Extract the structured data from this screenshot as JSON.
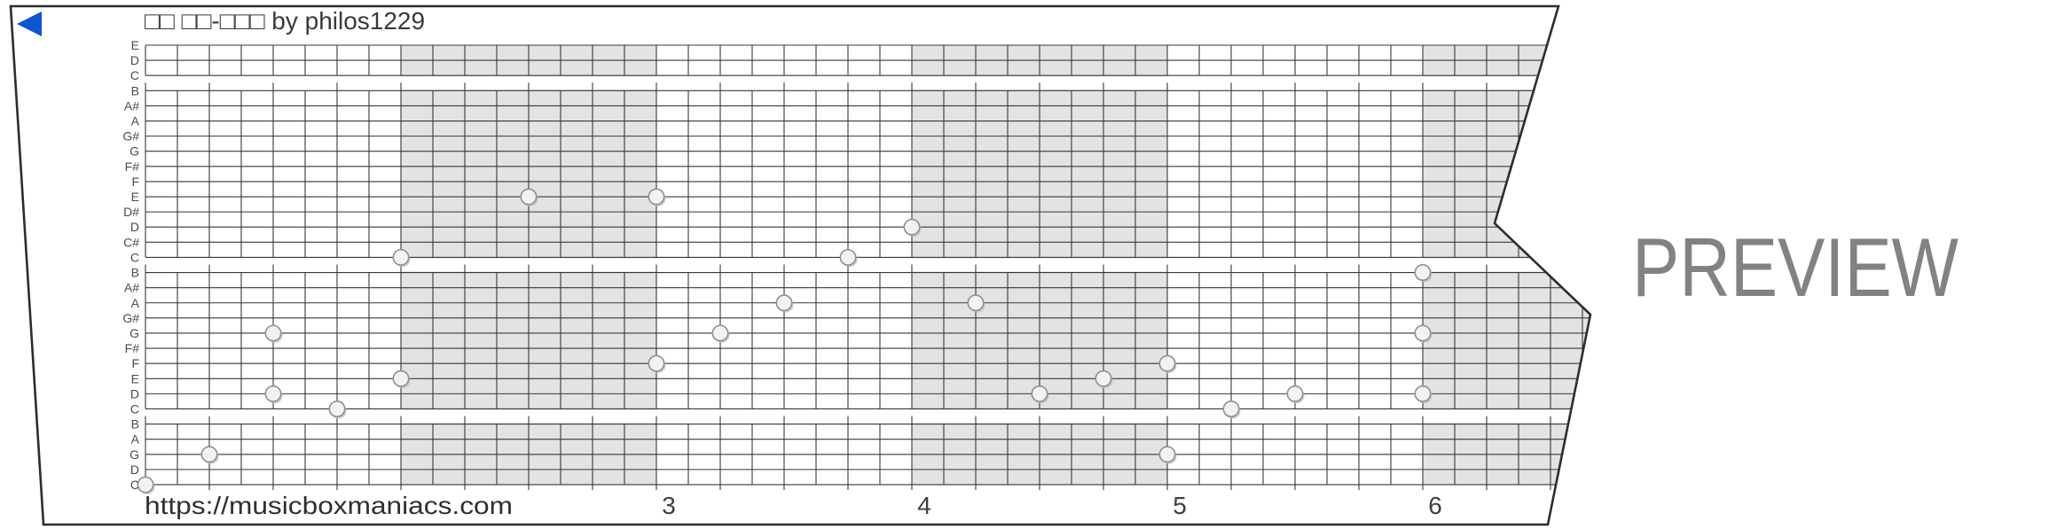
{
  "strip": {
    "title": "□□ □□-□□□ by philos1229",
    "url_watermark": "https://musicboxmaniacs.com",
    "preview_label": "PREVIEW",
    "row_labels": [
      "E",
      "D",
      "C",
      "B",
      "A#",
      "A",
      "G#",
      "G",
      "F#",
      "F",
      "E",
      "D#",
      "D",
      "C#",
      "C",
      "B",
      "A#",
      "A",
      "G#",
      "G",
      "F#",
      "F",
      "E",
      "D",
      "C",
      "B",
      "A",
      "G",
      "D",
      "C"
    ],
    "octave_gap_after_lines": [
      2,
      14,
      24
    ],
    "measure_numbers": [
      {
        "label": "3",
        "beat": 8
      },
      {
        "label": "4",
        "beat": 12
      },
      {
        "label": "5",
        "beat": 16
      },
      {
        "label": "6",
        "beat": 20
      }
    ],
    "shaded_beat_ranges": [
      [
        4,
        8
      ],
      [
        12,
        16
      ],
      [
        20,
        24
      ]
    ],
    "beats_per_measure": 4,
    "notes": [
      {
        "beat": 0,
        "line": 29,
        "pitch": "C"
      },
      {
        "beat": 1,
        "line": 27,
        "pitch": "G"
      },
      {
        "beat": 2,
        "line": 19,
        "pitch": "G"
      },
      {
        "beat": 2,
        "line": 23,
        "pitch": "D"
      },
      {
        "beat": 3,
        "line": 24,
        "pitch": "C"
      },
      {
        "beat": 4,
        "line": 22,
        "pitch": "E"
      },
      {
        "beat": 4,
        "line": 14,
        "pitch": "C"
      },
      {
        "beat": 6,
        "line": 10,
        "pitch": "E"
      },
      {
        "beat": 8,
        "line": 10,
        "pitch": "E"
      },
      {
        "beat": 8,
        "line": 21,
        "pitch": "F"
      },
      {
        "beat": 9,
        "line": 19,
        "pitch": "G"
      },
      {
        "beat": 10,
        "line": 17,
        "pitch": "A"
      },
      {
        "beat": 11,
        "line": 14,
        "pitch": "C"
      },
      {
        "beat": 12,
        "line": 12,
        "pitch": "D"
      },
      {
        "beat": 13,
        "line": 17,
        "pitch": "A"
      },
      {
        "beat": 14,
        "line": 23,
        "pitch": "D"
      },
      {
        "beat": 15,
        "line": 22,
        "pitch": "E"
      },
      {
        "beat": 16,
        "line": 21,
        "pitch": "F"
      },
      {
        "beat": 16,
        "line": 27,
        "pitch": "G"
      },
      {
        "beat": 17,
        "line": 24,
        "pitch": "C"
      },
      {
        "beat": 18,
        "line": 23,
        "pitch": "D"
      },
      {
        "beat": 20,
        "line": 15,
        "pitch": "B"
      },
      {
        "beat": 20,
        "line": 19,
        "pitch": "G"
      },
      {
        "beat": 20,
        "line": 23,
        "pitch": "D"
      }
    ],
    "colors": {
      "play_icon": "#0a57d0",
      "grid_line": "#383838",
      "strip_border": "#2d2d2d",
      "measure_shading": "#e3e3e3",
      "note_fill": "#f2f2f2",
      "note_stroke": "#8f8f8f",
      "note_shadow": "#c0c0c0",
      "preview_watermark": "#828282"
    }
  }
}
